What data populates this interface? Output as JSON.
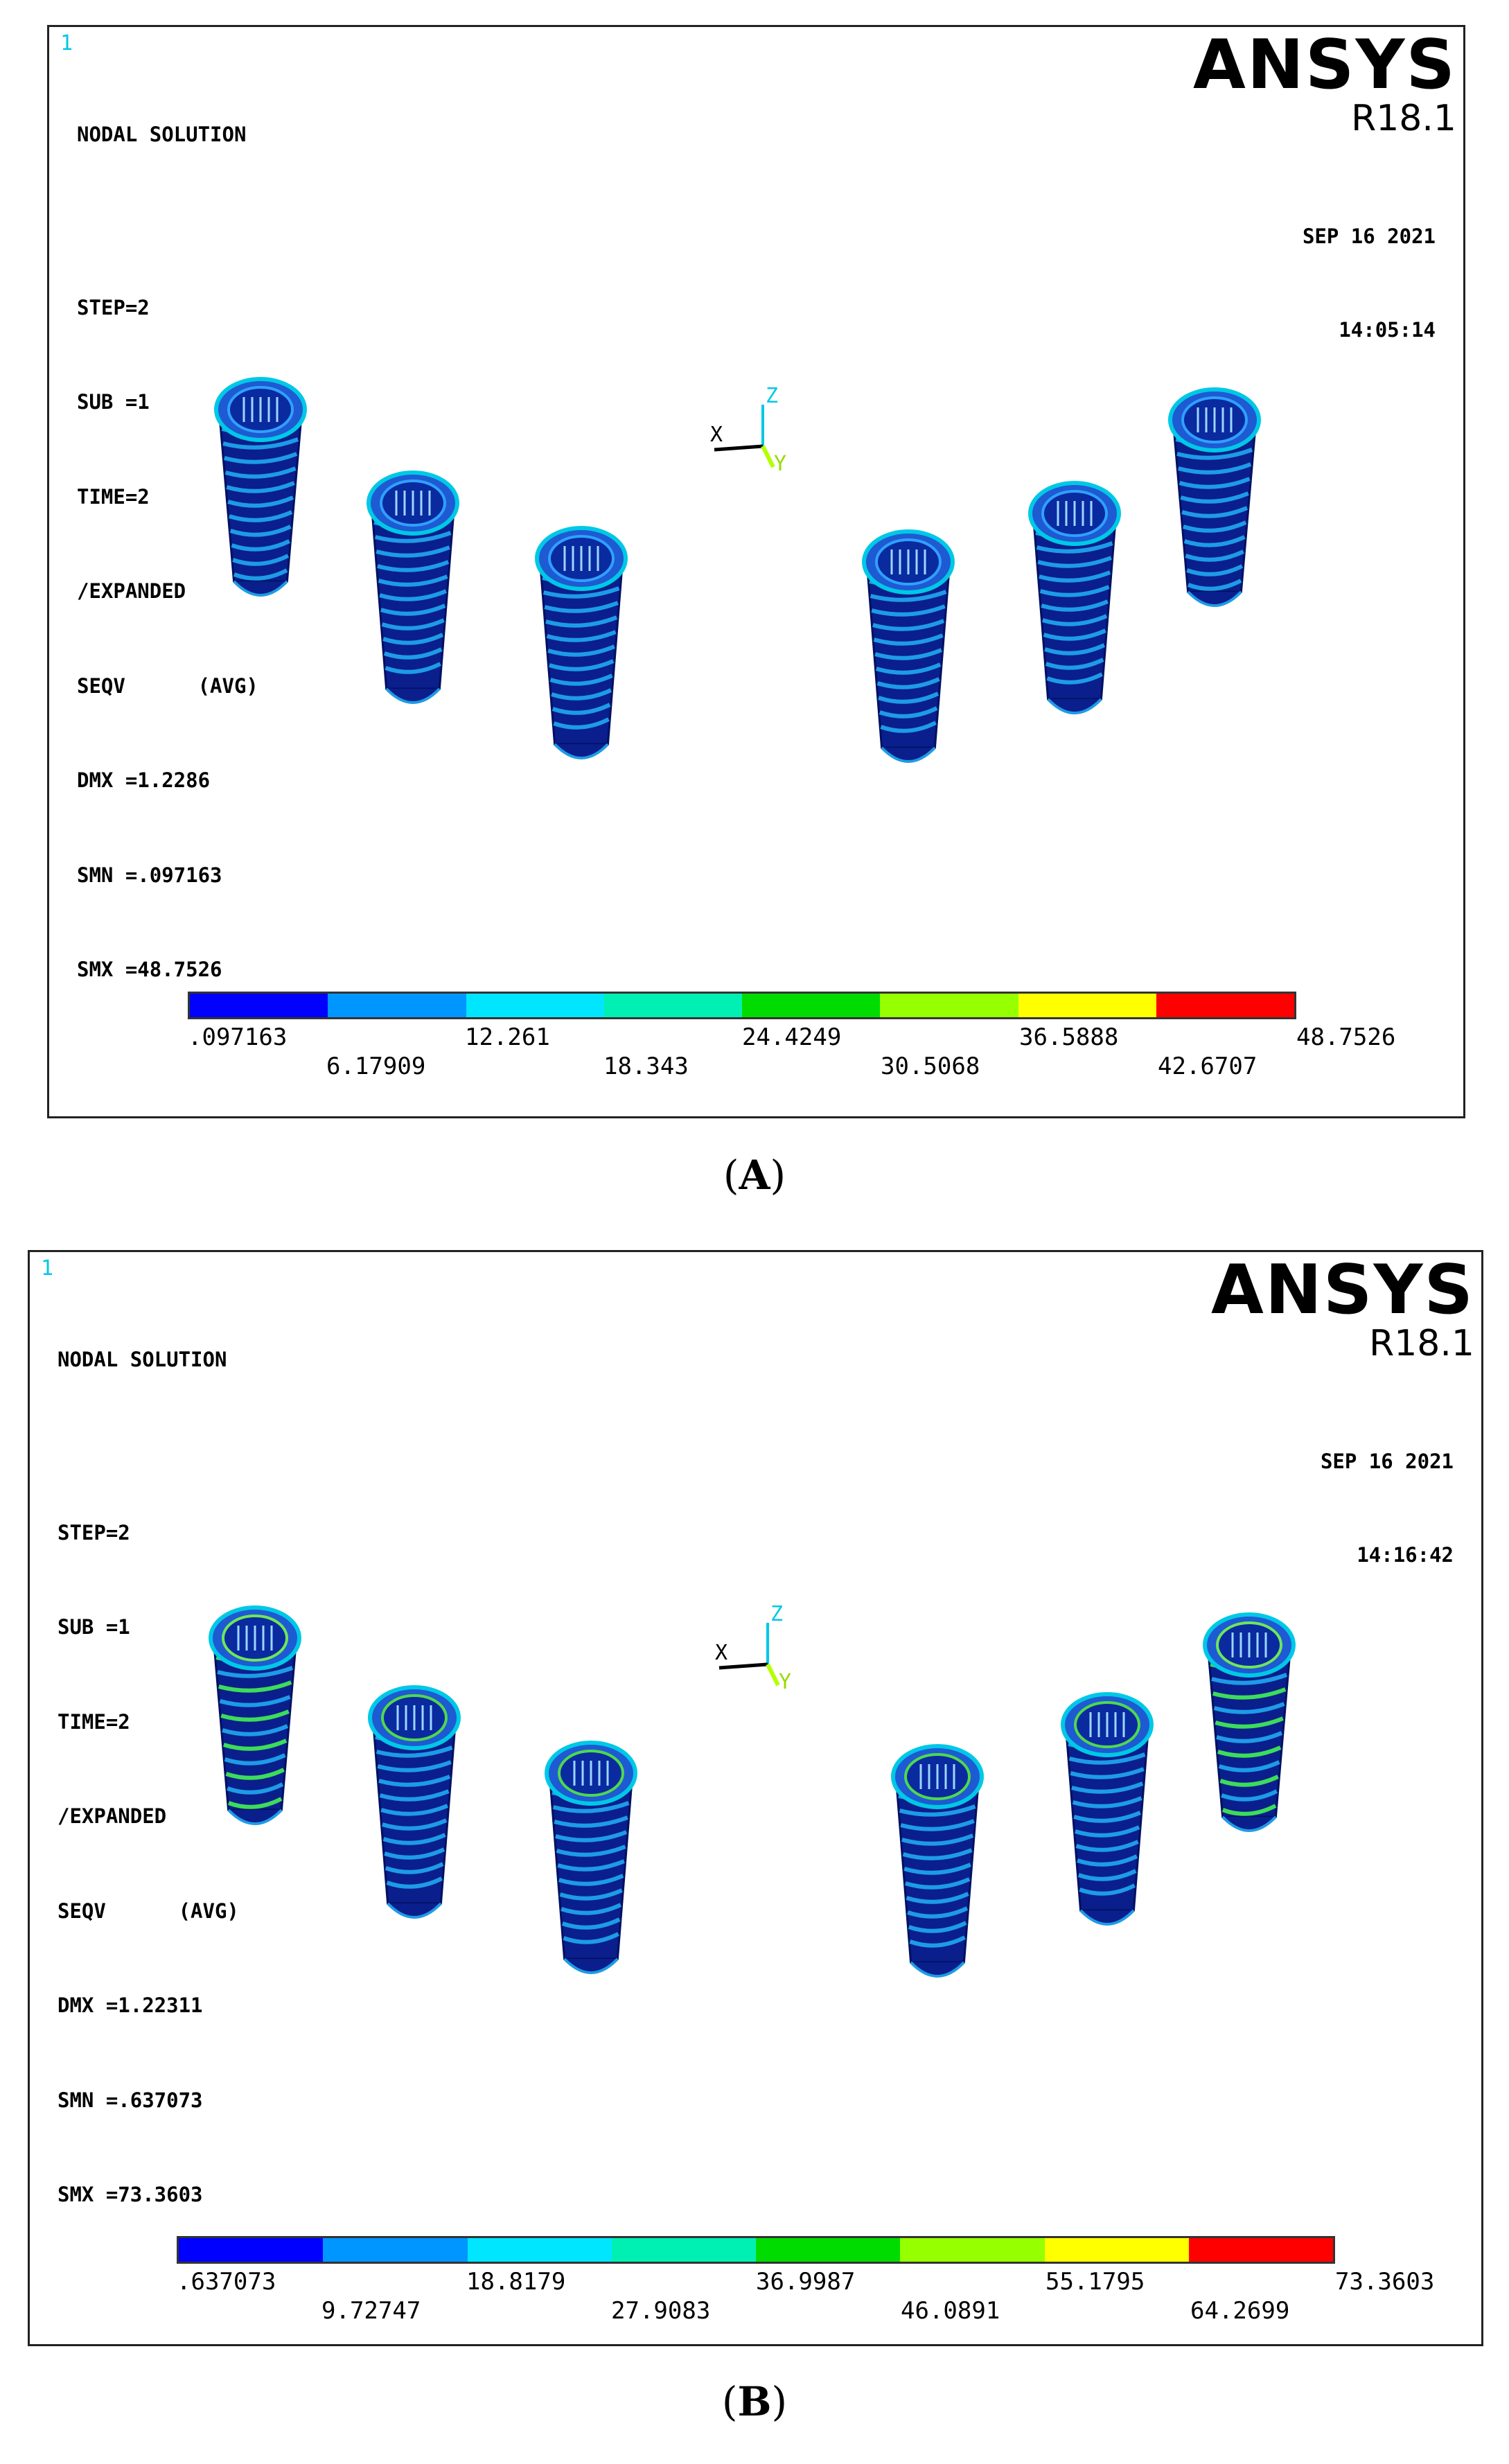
{
  "panels": [
    {
      "corner_label": "1",
      "title": "NODAL SOLUTION",
      "info": [
        "STEP=2",
        "SUB =1",
        "TIME=2",
        "/EXPANDED",
        "SEQV      (AVG)",
        "DMX =1.2286",
        "SMN =.097163",
        "SMX =48.7526"
      ],
      "logo": "ANSYS",
      "version": "R18.1",
      "date": "SEP 16 2021",
      "time": "14:05:14",
      "triad": {
        "x": "X",
        "z": "Z",
        "y": "Y"
      },
      "legend": {
        "colors": [
          "#0000ff",
          "#0096ff",
          "#00e6ff",
          "#00f0b4",
          "#00dc00",
          "#96ff00",
          "#ffff00",
          "#ff0000"
        ],
        "top_ticks": [
          ".097163",
          "12.261",
          "24.4249",
          "36.5888",
          "48.7526"
        ],
        "bottom_ticks": [
          "6.17909",
          "18.343",
          "30.5068",
          "42.6707"
        ]
      },
      "implants": 6
    },
    {
      "corner_label": "1",
      "title": "NODAL SOLUTION",
      "info": [
        "STEP=2",
        "SUB =1",
        "TIME=2",
        "/EXPANDED",
        "SEQV      (AVG)",
        "DMX =1.22311",
        "SMN =.637073",
        "SMX =73.3603"
      ],
      "logo": "ANSYS",
      "version": "R18.1",
      "date": "SEP 16 2021",
      "time": "14:16:42",
      "triad": {
        "x": "X",
        "z": "Z",
        "y": "Y"
      },
      "legend": {
        "colors": [
          "#0000ff",
          "#0096ff",
          "#00e6ff",
          "#00f0b4",
          "#00dc00",
          "#96ff00",
          "#ffff00",
          "#ff0000"
        ],
        "top_ticks": [
          ".637073",
          "18.8179",
          "36.9987",
          "55.1795",
          "73.3603"
        ],
        "bottom_ticks": [
          "9.72747",
          "27.9083",
          "46.0891",
          "64.2699"
        ]
      },
      "implants": 6
    }
  ],
  "captions": [
    {
      "open": "(",
      "letter": "A",
      "close": ")"
    },
    {
      "open": "(",
      "letter": "B",
      "close": ")"
    }
  ]
}
